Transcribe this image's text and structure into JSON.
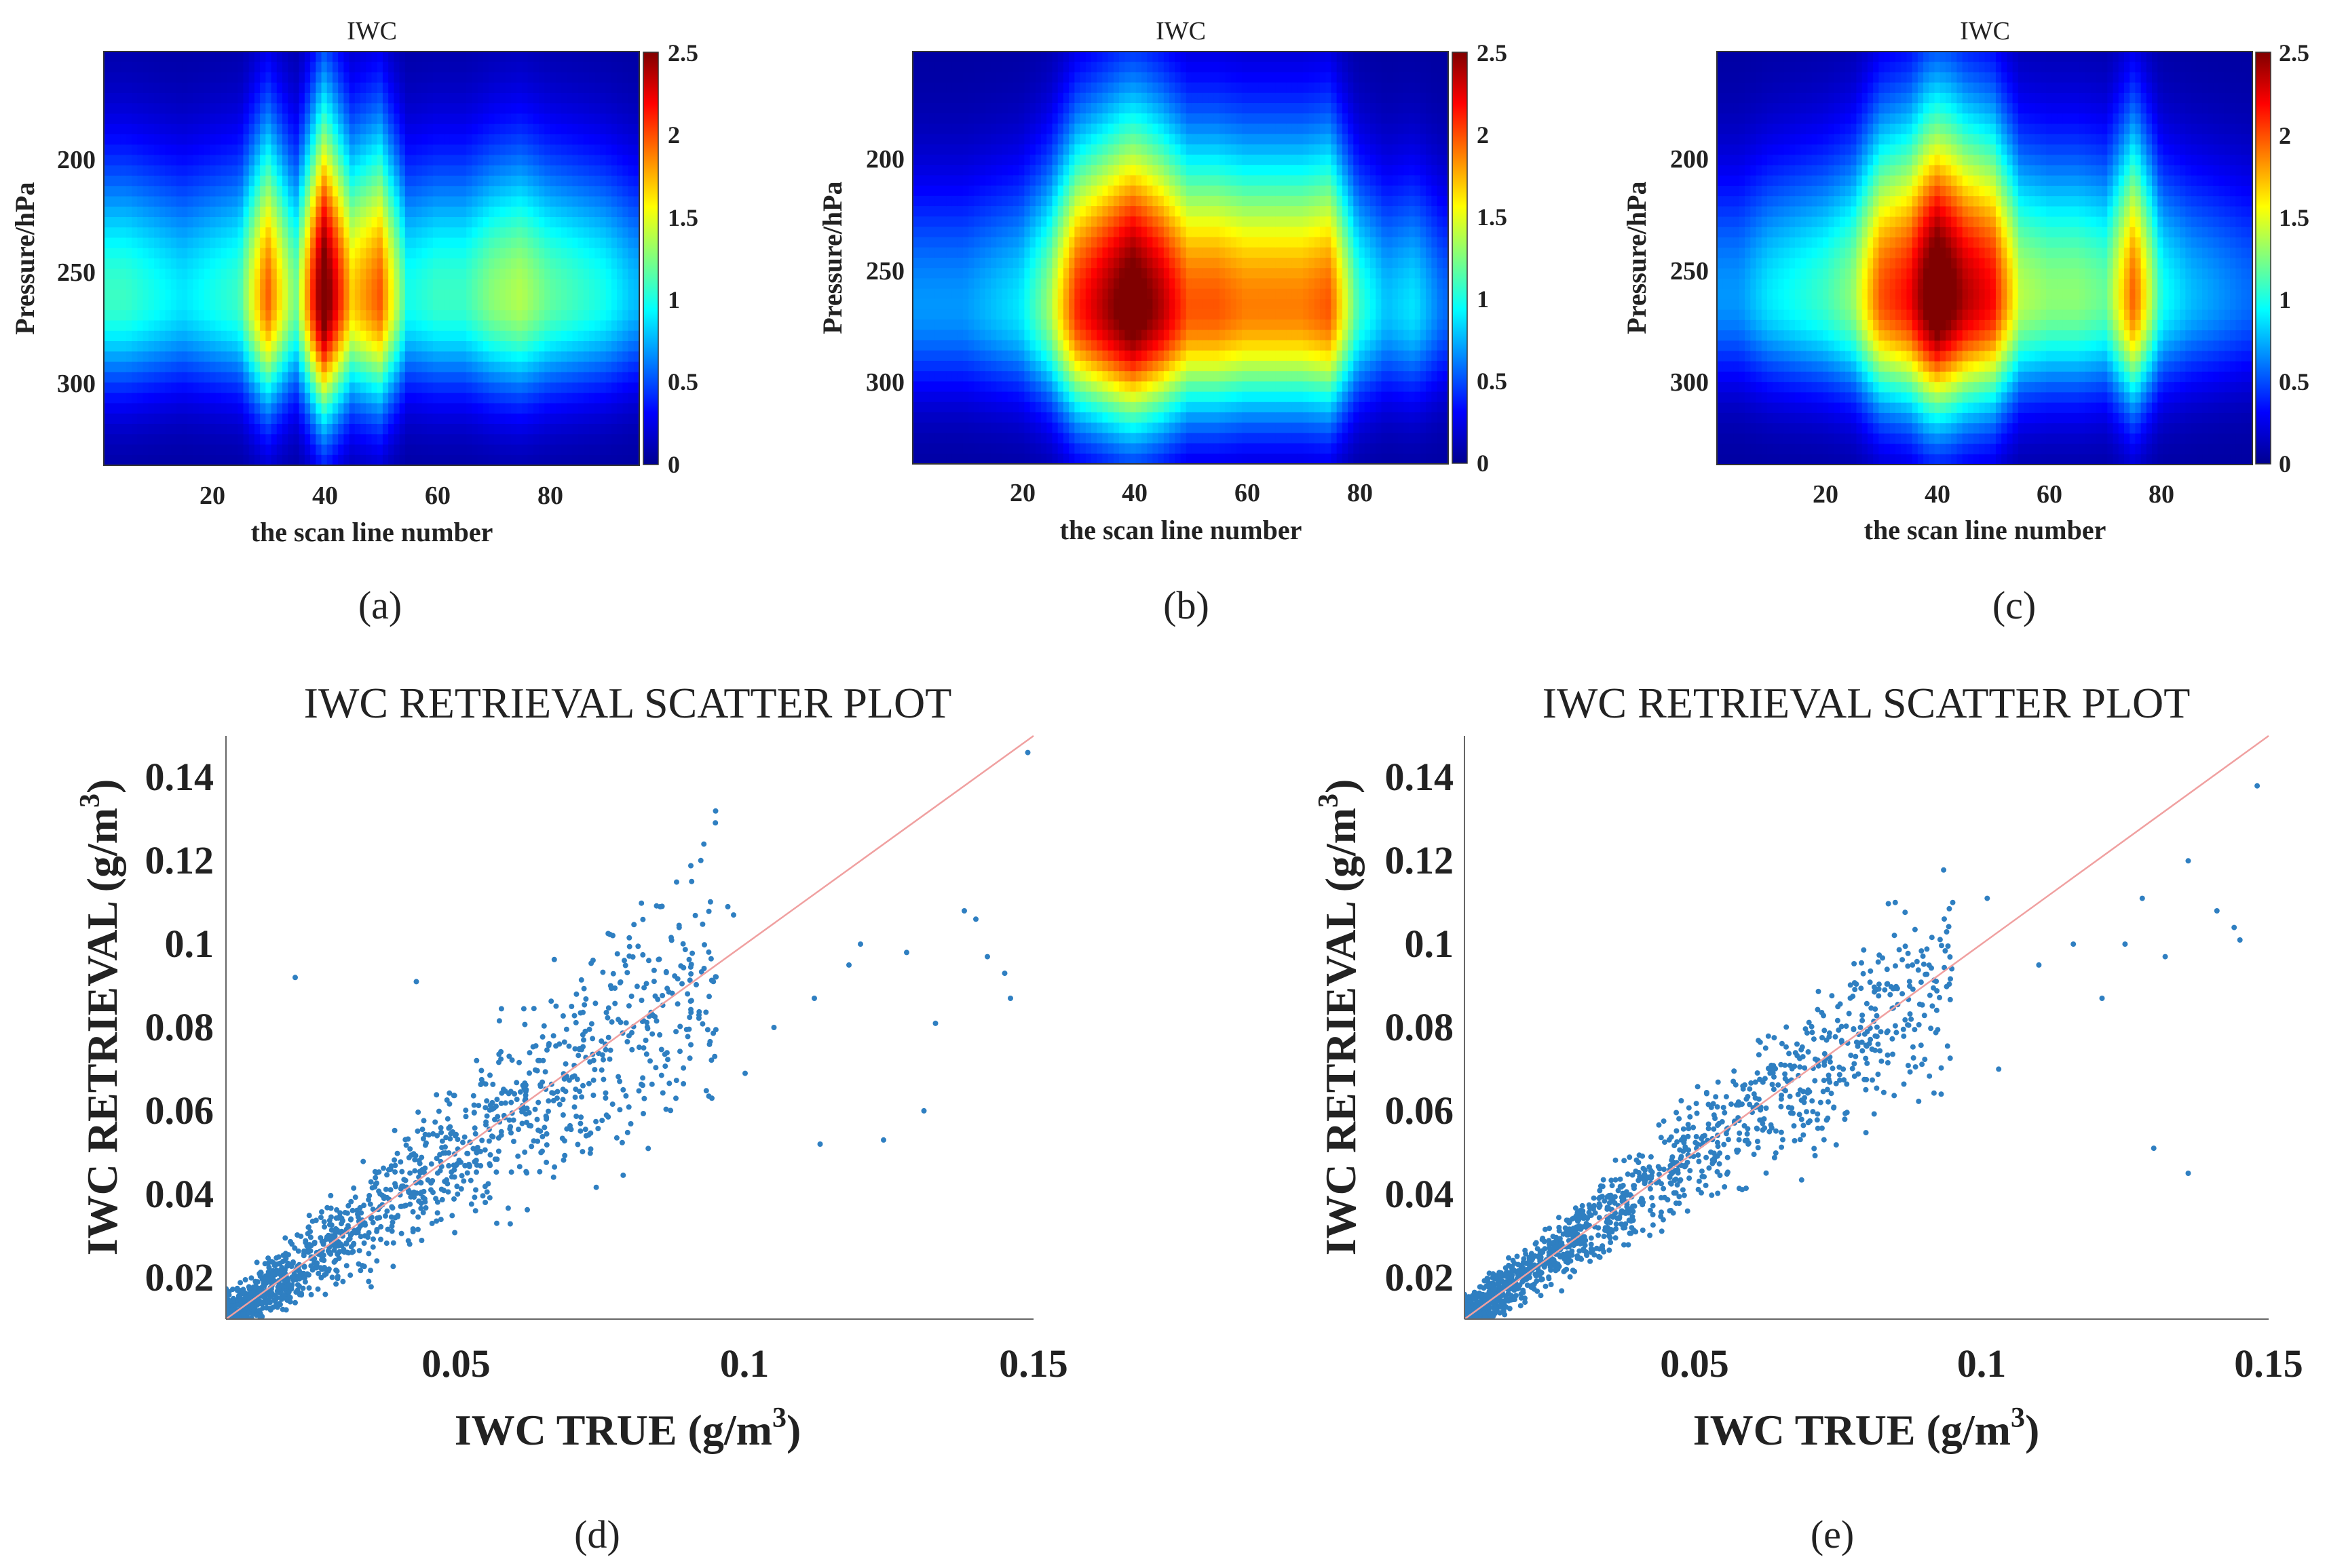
{
  "chart_data": [
    {
      "id": "a",
      "type": "heatmap",
      "panel_label": "(a)",
      "title": "IWC",
      "xlabel": "the scan line number",
      "ylabel": "Pressure/hPa",
      "xlim": [
        1,
        96
      ],
      "ylim": [
        340,
        155
      ],
      "x_ticks": [
        "20",
        "40",
        "60",
        "80"
      ],
      "x_tick_values": [
        20,
        40,
        60,
        80
      ],
      "y_ticks": [
        "200",
        "250",
        "300"
      ],
      "y_tick_values": [
        200,
        250,
        300
      ],
      "colorbar": {
        "min": 0,
        "max": 2.5,
        "ticks": [
          "0",
          "0.5",
          "1",
          "1.5",
          "2",
          "2.5"
        ],
        "tick_values": [
          0,
          0.5,
          1,
          1.5,
          2,
          2.5
        ]
      },
      "core_pressure": 265,
      "scan_lines": [
        5,
        10,
        15,
        20,
        25,
        30,
        35,
        40,
        45,
        50,
        55,
        60,
        65,
        70,
        75,
        80,
        85,
        90,
        95
      ],
      "peak_iwc": [
        1.0,
        0.9,
        0.8,
        0.9,
        1.0,
        1.9,
        1.1,
        2.6,
        1.6,
        1.9,
        0.9,
        1.0,
        1.0,
        1.2,
        1.3,
        1.1,
        1.0,
        0.9,
        0.7
      ]
    },
    {
      "id": "b",
      "type": "heatmap",
      "panel_label": "(b)",
      "title": "IWC",
      "xlabel": "the scan line number",
      "ylabel": "Pressure/hPa",
      "xlim": [
        1,
        96
      ],
      "ylim": [
        340,
        155
      ],
      "x_ticks": [
        "20",
        "40",
        "60",
        "80"
      ],
      "x_tick_values": [
        20,
        40,
        60,
        80
      ],
      "y_ticks": [
        "200",
        "250",
        "300"
      ],
      "y_tick_values": [
        200,
        250,
        300
      ],
      "colorbar": {
        "min": 0,
        "max": 2.5,
        "ticks": [
          "0",
          "0.5",
          "1",
          "1.5",
          "2",
          "2.5"
        ],
        "tick_values": [
          0,
          0.5,
          1,
          1.5,
          2,
          2.5
        ]
      },
      "core_pressure": 270,
      "scan_lines": [
        5,
        10,
        15,
        20,
        25,
        30,
        35,
        40,
        45,
        50,
        55,
        60,
        65,
        70,
        75,
        80,
        85,
        90,
        95
      ],
      "peak_iwc": [
        0.6,
        0.6,
        0.7,
        0.8,
        1.2,
        2.0,
        2.3,
        2.6,
        2.3,
        1.9,
        1.9,
        1.8,
        1.8,
        1.8,
        1.9,
        1.0,
        0.7,
        0.8,
        0.5
      ]
    },
    {
      "id": "c",
      "type": "heatmap",
      "panel_label": "(c)",
      "title": "IWC",
      "xlabel": "the scan line number",
      "ylabel": "Pressure/hPa",
      "xlim": [
        1,
        96
      ],
      "ylim": [
        340,
        155
      ],
      "x_ticks": [
        "20",
        "40",
        "60",
        "80"
      ],
      "x_tick_values": [
        20,
        40,
        60,
        80
      ],
      "y_ticks": [
        "200",
        "250",
        "300"
      ],
      "y_tick_values": [
        200,
        250,
        300
      ],
      "colorbar": {
        "min": 0,
        "max": 2.5,
        "ticks": [
          "0",
          "0.5",
          "1",
          "1.5",
          "2",
          "2.5"
        ],
        "tick_values": [
          0,
          0.5,
          1,
          1.5,
          2,
          2.5
        ]
      },
      "core_pressure": 265,
      "scan_lines": [
        5,
        10,
        15,
        20,
        25,
        30,
        35,
        40,
        45,
        50,
        55,
        60,
        65,
        70,
        75,
        80,
        85,
        90,
        95
      ],
      "peak_iwc": [
        0.6,
        0.8,
        0.9,
        1.0,
        1.2,
        1.9,
        2.1,
        2.7,
        2.3,
        2.1,
        1.3,
        1.2,
        1.2,
        1.1,
        1.9,
        0.9,
        0.7,
        0.6,
        0.5
      ]
    },
    {
      "id": "d",
      "type": "scatter",
      "panel_label": "(d)",
      "title": "IWC RETRIEVAL SCATTER PLOT",
      "xlabel": "IWC TRUE (g/m",
      "ylabel": "IWC RETRIEVAL (g/m",
      "unit_exponent": "3",
      "unit_close": ")",
      "xlim": [
        0.01,
        0.15
      ],
      "ylim": [
        0.01,
        0.15
      ],
      "x_ticks": [
        "0.05",
        "0.1",
        "0.15"
      ],
      "x_tick_values": [
        0.05,
        0.1,
        0.15
      ],
      "y_ticks": [
        "0.02",
        "0.04",
        "0.06",
        "0.08",
        "0.1",
        "0.12",
        "0.14"
      ],
      "y_tick_values": [
        0.02,
        0.04,
        0.06,
        0.08,
        0.1,
        0.12,
        0.14
      ],
      "reference_line": {
        "from": [
          0.01,
          0.01
        ],
        "to": [
          0.15,
          0.15
        ],
        "color": "#f0a0a0"
      },
      "marker_color": "#2f7fc1",
      "n_points_drawn": 1600,
      "spread": 0.3,
      "outliers": [
        [
          0.149,
          0.146
        ],
        [
          0.138,
          0.108
        ],
        [
          0.14,
          0.106
        ],
        [
          0.145,
          0.093
        ],
        [
          0.142,
          0.097
        ],
        [
          0.146,
          0.087
        ],
        [
          0.128,
          0.098
        ],
        [
          0.133,
          0.081
        ],
        [
          0.12,
          0.1
        ],
        [
          0.118,
          0.095
        ],
        [
          0.112,
          0.087
        ],
        [
          0.105,
          0.08
        ],
        [
          0.131,
          0.06
        ],
        [
          0.113,
          0.052
        ],
        [
          0.124,
          0.053
        ],
        [
          0.1,
          0.069
        ],
        [
          0.092,
          0.083
        ],
        [
          0.097,
          0.109
        ],
        [
          0.098,
          0.107
        ],
        [
          0.022,
          0.092
        ],
        [
          0.043,
          0.091
        ],
        [
          0.088,
          0.063
        ],
        [
          0.072,
          0.077
        ]
      ]
    },
    {
      "id": "e",
      "type": "scatter",
      "panel_label": "(e)",
      "title": "IWC RETRIEVAL SCATTER PLOT",
      "xlabel": "IWC TRUE (g/m",
      "ylabel": "IWC RETRIEVAL (g/m",
      "unit_exponent": "3",
      "unit_close": ")",
      "xlim": [
        0.01,
        0.15
      ],
      "ylim": [
        0.01,
        0.15
      ],
      "x_ticks": [
        "0.05",
        "0.1",
        "0.15"
      ],
      "x_tick_values": [
        0.05,
        0.1,
        0.15
      ],
      "y_ticks": [
        "0.02",
        "0.04",
        "0.06",
        "0.08",
        "0.1",
        "0.12",
        "0.14"
      ],
      "y_tick_values": [
        0.02,
        0.04,
        0.06,
        0.08,
        0.1,
        0.12,
        0.14
      ],
      "reference_line": {
        "from": [
          0.01,
          0.01
        ],
        "to": [
          0.15,
          0.15
        ],
        "color": "#f0a0a0"
      },
      "marker_color": "#2f7fc1",
      "n_points_drawn": 1600,
      "spread": 0.22,
      "outliers": [
        [
          0.148,
          0.138
        ],
        [
          0.136,
          0.12
        ],
        [
          0.141,
          0.108
        ],
        [
          0.144,
          0.104
        ],
        [
          0.145,
          0.101
        ],
        [
          0.128,
          0.111
        ],
        [
          0.125,
          0.1
        ],
        [
          0.121,
          0.087
        ],
        [
          0.132,
          0.097
        ],
        [
          0.116,
          0.1
        ],
        [
          0.11,
          0.095
        ],
        [
          0.13,
          0.051
        ],
        [
          0.136,
          0.045
        ],
        [
          0.101,
          0.111
        ],
        [
          0.095,
          0.11
        ],
        [
          0.085,
          0.11
        ],
        [
          0.082,
          0.076
        ],
        [
          0.072,
          0.062
        ],
        [
          0.075,
          0.085
        ],
        [
          0.088,
          0.095
        ],
        [
          0.093,
          0.064
        ],
        [
          0.103,
          0.07
        ]
      ]
    }
  ]
}
